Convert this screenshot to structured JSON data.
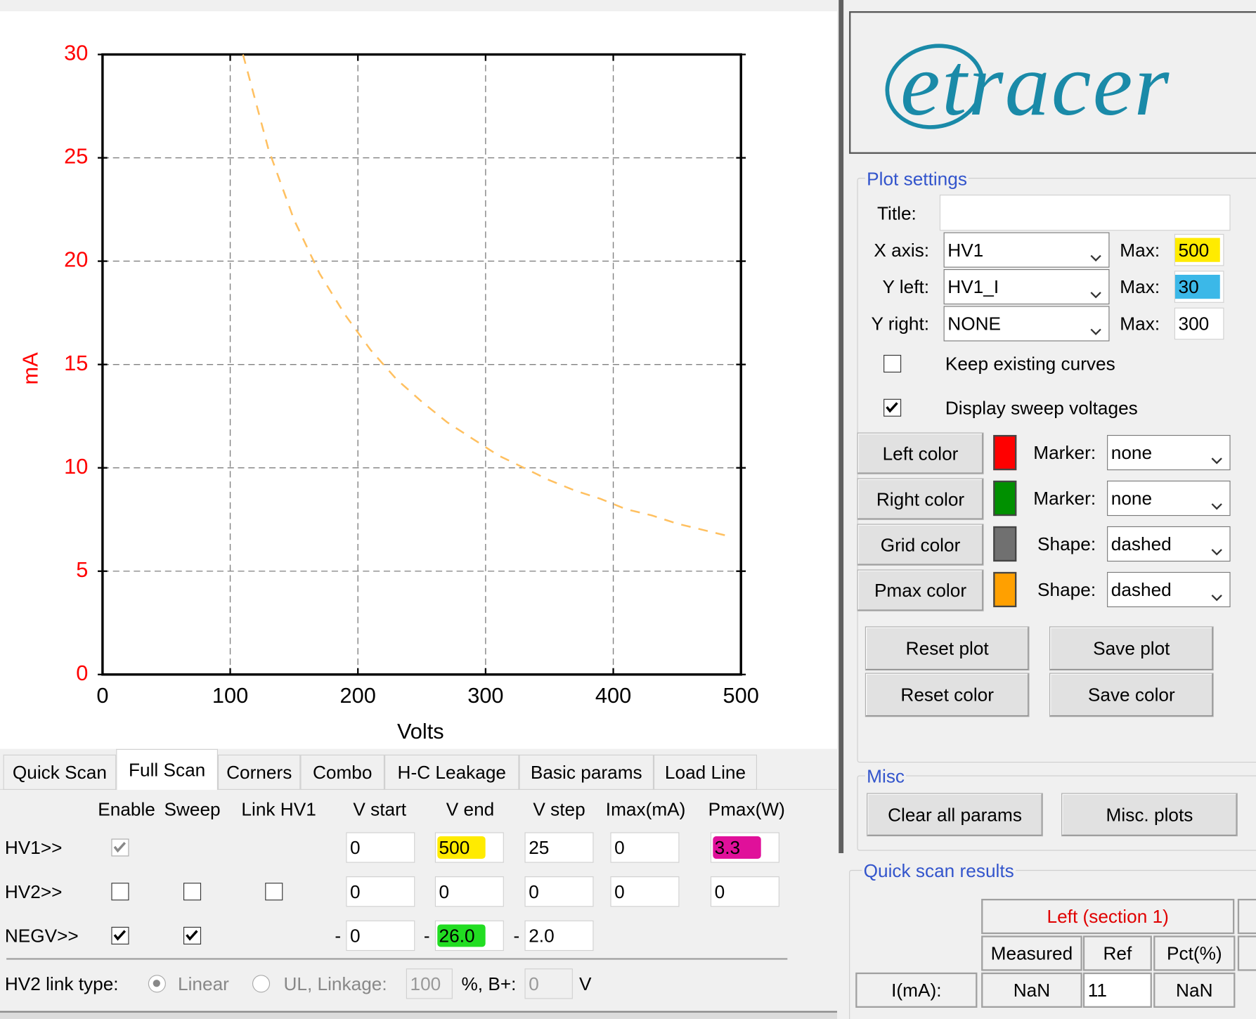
{
  "chart_data": {
    "type": "line",
    "xlabel": "Volts",
    "ylabel": "mA",
    "label_color": "#ff0000",
    "x": [
      110,
      130,
      150,
      170,
      190,
      210,
      230,
      250,
      270,
      290,
      310,
      330,
      350,
      370,
      390,
      410,
      430,
      450,
      470,
      490
    ],
    "series": [
      {
        "color": "#ffc060",
        "line_style": "dashed",
        "values": [
          30.0,
          25.4,
          22.0,
          19.4,
          17.4,
          15.7,
          14.3,
          13.2,
          12.2,
          11.4,
          10.6,
          10.0,
          9.4,
          8.9,
          8.5,
          8.0,
          7.7,
          7.3,
          7.0,
          6.7
        ]
      }
    ],
    "xlim": [
      0,
      500
    ],
    "ylim": [
      0,
      30
    ],
    "xticks": [
      0,
      100,
      200,
      300,
      400,
      500
    ],
    "yticks": [
      0,
      5,
      10,
      15,
      20,
      25,
      30
    ],
    "grid": true,
    "grid_color": "#808080"
  },
  "logo": "etracer",
  "tabs": {
    "items": [
      "Quick Scan",
      "Full Scan",
      "Corners",
      "Combo",
      "H-C Leakage",
      "Basic params",
      "Load Line"
    ],
    "selected": 1
  },
  "full_scan": {
    "headers": [
      "Enable",
      "Sweep",
      "Link HV1",
      "V start",
      "V end",
      "V step",
      "Imax(mA)",
      "Pmax(W)"
    ],
    "rows": [
      {
        "label": "HV1>>",
        "checks": [
          {
            "checked": true,
            "disabled": true
          },
          null,
          null
        ],
        "fields": [
          {
            "value": "0"
          },
          {
            "value": "500",
            "highlight": "#ffeb00"
          },
          {
            "value": "25"
          },
          {
            "value": "0"
          },
          {
            "value": "3.3",
            "highlight": "#e0109a"
          }
        ]
      },
      {
        "label": "HV2>>",
        "checks": [
          {
            "checked": false
          },
          {
            "checked": false
          },
          {
            "checked": false
          }
        ],
        "fields": [
          {
            "value": "0"
          },
          {
            "value": "0"
          },
          {
            "value": "0"
          },
          {
            "value": "0"
          },
          {
            "value": "0"
          }
        ]
      },
      {
        "label": "NEGV>>",
        "checks": [
          {
            "checked": true
          },
          {
            "checked": true
          },
          null
        ],
        "fields": [
          {
            "prefix": "-",
            "value": "0"
          },
          {
            "prefix": "-",
            "value": "26.0",
            "highlight": "#22dd22"
          },
          {
            "prefix": "-",
            "value": "2.0"
          }
        ]
      }
    ],
    "link": {
      "label": "HV2 link type:",
      "options": [
        "Linear",
        "UL, Linkage:"
      ],
      "selected": 0,
      "linkage": "100",
      "unit1": "%, B+:",
      "bplus": "0",
      "unit2": "V"
    }
  },
  "plot_settings": {
    "title": "Plot settings",
    "title_label": "Title:",
    "axes": [
      {
        "label": "X axis:",
        "choice": "HV1",
        "max_label": "Max:",
        "max": "500",
        "highlight": "#ffeb00"
      },
      {
        "label": "Y left:",
        "choice": "HV1_I",
        "max_label": "Max:",
        "max": "30",
        "highlight": "#3bb8e8"
      },
      {
        "label": "Y right:",
        "choice": "NONE",
        "max_label": "Max:",
        "max": "300"
      }
    ],
    "checks": [
      {
        "label": "Keep existing curves",
        "checked": false
      },
      {
        "label": "Display sweep voltages",
        "checked": true
      }
    ],
    "colors": [
      {
        "button": "Left color",
        "color": "#ff0000",
        "option_label": "Marker:",
        "option": "none"
      },
      {
        "button": "Right color",
        "color": "#009000",
        "option_label": "Marker:",
        "option": "none"
      },
      {
        "button": "Grid color",
        "color": "#707070",
        "option_label": "Shape:",
        "option": "dashed"
      },
      {
        "button": "Pmax color",
        "color": "#ffa000",
        "option_label": "Shape:",
        "option": "dashed"
      }
    ],
    "buttons": [
      "Reset plot",
      "Save plot",
      "Reset color",
      "Save color"
    ]
  },
  "misc": {
    "title": "Misc",
    "buttons": [
      "Clear all params",
      "Misc. plots"
    ]
  },
  "quick_scan": {
    "title": "Quick scan results",
    "section": "Left (section 1)",
    "columns": [
      "Measured",
      "Ref",
      "Pct(%)"
    ],
    "rows": [
      {
        "label": "I(mA):",
        "cells": [
          "NaN",
          "11",
          "NaN"
        ]
      }
    ]
  }
}
